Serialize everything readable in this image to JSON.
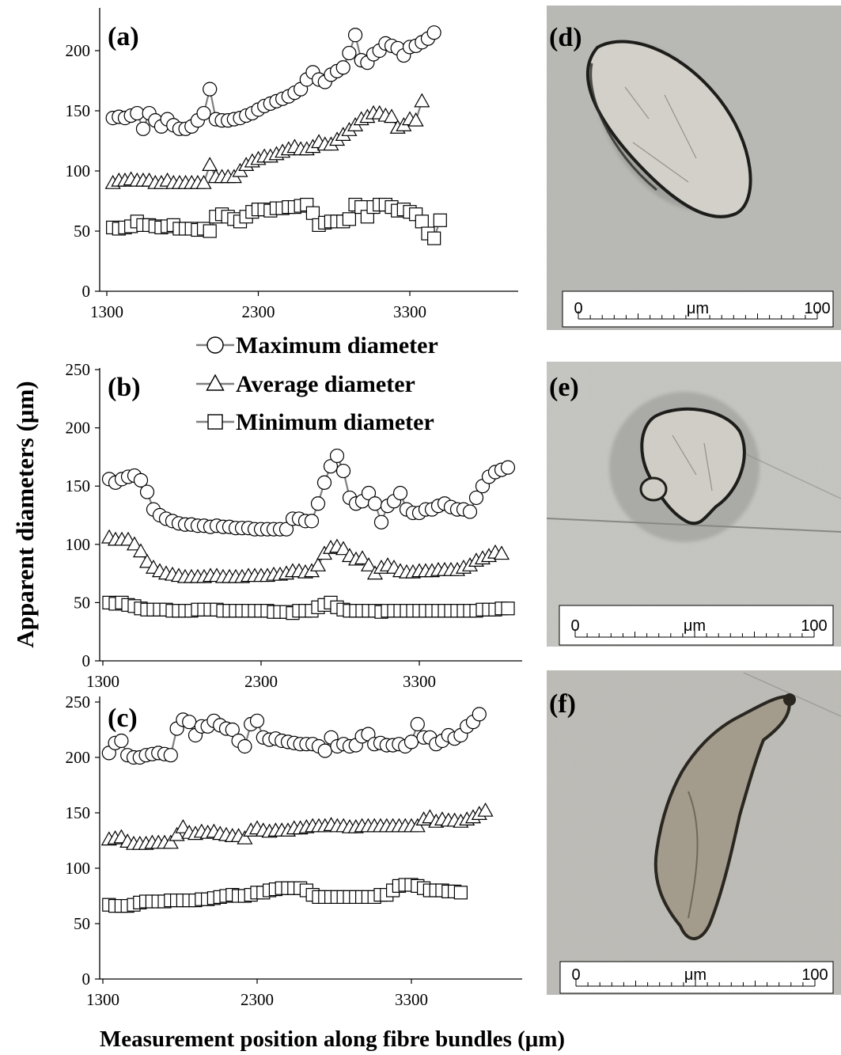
{
  "figure": {
    "ylabel": "Apparent diameters (μm)",
    "xlabel": "Measurement position along fibre bundles (μm)"
  },
  "legend": {
    "entries": [
      {
        "label": "Maximum diameter",
        "marker": "circle"
      },
      {
        "label": "Average diameter",
        "marker": "triangle"
      },
      {
        "label": "Minimum diameter",
        "marker": "square"
      }
    ]
  },
  "chart_data": [
    {
      "type": "line",
      "panel_label": "(a)",
      "xticks": [
        "1300",
        "2300",
        "3300"
      ],
      "yticks": [
        "0",
        "50",
        "100",
        "150",
        "200"
      ],
      "xlim": [
        1300,
        4000
      ],
      "ylim": [
        0,
        235
      ],
      "x_start": 1340,
      "x_step": 40,
      "series": [
        {
          "name": "Maximum diameter",
          "marker": "circle",
          "values": [
            144,
            145,
            144,
            146,
            148,
            135,
            148,
            142,
            137,
            143,
            138,
            135,
            135,
            137,
            142,
            148,
            168,
            143,
            142,
            142,
            143,
            144,
            146,
            148,
            151,
            154,
            156,
            158,
            160,
            162,
            165,
            168,
            176,
            182,
            176,
            174,
            180,
            183,
            186,
            198,
            213,
            192,
            190,
            197,
            200,
            206,
            204,
            202,
            196,
            203,
            204,
            207,
            210,
            215
          ]
        },
        {
          "name": "Average diameter",
          "marker": "triangle",
          "values": [
            90,
            92,
            92,
            93,
            92,
            92,
            92,
            90,
            90,
            92,
            90,
            90,
            90,
            90,
            90,
            90,
            105,
            95,
            95,
            95,
            95,
            100,
            105,
            108,
            110,
            112,
            112,
            114,
            116,
            118,
            120,
            118,
            118,
            120,
            124,
            122,
            122,
            126,
            130,
            134,
            138,
            143,
            145,
            148,
            148,
            146,
            145,
            136,
            138,
            143,
            142,
            158
          ]
        },
        {
          "name": "Minimum diameter",
          "marker": "square",
          "values": [
            53,
            52,
            53,
            54,
            58,
            55,
            55,
            54,
            53,
            54,
            55,
            52,
            52,
            52,
            51,
            52,
            50,
            62,
            64,
            62,
            60,
            58,
            62,
            66,
            68,
            68,
            67,
            69,
            69,
            70,
            70,
            71,
            72,
            65,
            55,
            57,
            58,
            58,
            58,
            60,
            72,
            70,
            62,
            70,
            72,
            72,
            70,
            67,
            68,
            66,
            64,
            58,
            48,
            44,
            59
          ]
        }
      ]
    },
    {
      "type": "line",
      "panel_label": "(b)",
      "xticks": [
        "1300",
        "2300",
        "3300"
      ],
      "yticks": [
        "0",
        "50",
        "100",
        "150",
        "200",
        "250"
      ],
      "xlim": [
        1300,
        4000
      ],
      "ylim": [
        0,
        250
      ],
      "x_start": 1340,
      "x_step": 40,
      "series": [
        {
          "name": "Maximum diameter",
          "marker": "circle",
          "values": [
            156,
            153,
            156,
            158,
            159,
            155,
            145,
            130,
            125,
            122,
            120,
            118,
            117,
            117,
            116,
            116,
            115,
            116,
            115,
            115,
            114,
            114,
            114,
            113,
            113,
            113,
            113,
            113,
            113,
            122,
            122,
            120,
            120,
            135,
            153,
            167,
            176,
            163,
            140,
            135,
            137,
            144,
            135,
            119,
            133,
            137,
            144,
            130,
            127,
            127,
            130,
            130,
            133,
            135,
            132,
            130,
            130,
            128,
            140,
            150,
            158,
            162,
            164,
            166
          ]
        },
        {
          "name": "Average diameter",
          "marker": "triangle",
          "values": [
            106,
            104,
            104,
            104,
            100,
            94,
            85,
            80,
            77,
            75,
            74,
            73,
            72,
            72,
            72,
            72,
            73,
            73,
            72,
            72,
            72,
            72,
            73,
            73,
            73,
            73,
            74,
            74,
            75,
            77,
            77,
            76,
            77,
            82,
            92,
            97,
            98,
            96,
            90,
            87,
            88,
            82,
            75,
            80,
            82,
            80,
            77,
            76,
            76,
            77,
            77,
            77,
            78,
            78,
            78,
            78,
            80,
            82,
            86,
            88,
            90,
            93,
            92
          ]
        },
        {
          "name": "Minimum diameter",
          "marker": "square",
          "values": [
            50,
            49,
            50,
            48,
            47,
            45,
            44,
            44,
            44,
            44,
            43,
            43,
            43,
            43,
            44,
            44,
            44,
            44,
            43,
            43,
            43,
            43,
            43,
            43,
            43,
            43,
            42,
            42,
            42,
            41,
            43,
            43,
            43,
            46,
            48,
            50,
            46,
            44,
            43,
            43,
            43,
            43,
            43,
            42,
            43,
            43,
            43,
            43,
            43,
            43,
            43,
            43,
            43,
            43,
            43,
            43,
            43,
            43,
            43,
            44,
            44,
            44,
            45,
            45
          ]
        }
      ]
    },
    {
      "type": "line",
      "panel_label": "(c)",
      "xticks": [
        "1300",
        "2300",
        "3300"
      ],
      "yticks": [
        "0",
        "50",
        "100",
        "150",
        "200",
        "250"
      ],
      "xlim": [
        1300,
        4000
      ],
      "ylim": [
        0,
        250
      ],
      "x_start": 1340,
      "x_step": 40,
      "series": [
        {
          "name": "Maximum diameter",
          "marker": "circle",
          "values": [
            204,
            213,
            215,
            202,
            200,
            200,
            202,
            203,
            204,
            203,
            202,
            226,
            234,
            232,
            220,
            228,
            228,
            233,
            229,
            226,
            225,
            215,
            210,
            230,
            233,
            218,
            216,
            217,
            215,
            214,
            213,
            212,
            212,
            212,
            210,
            206,
            218,
            210,
            212,
            210,
            211,
            219,
            221,
            212,
            213,
            211,
            211,
            212,
            210,
            214,
            230,
            218,
            218,
            212,
            215,
            220,
            217,
            220,
            228,
            232,
            239
          ]
        },
        {
          "name": "Average diameter",
          "marker": "triangle",
          "values": [
            126,
            127,
            128,
            124,
            122,
            122,
            122,
            123,
            123,
            123,
            123,
            130,
            137,
            132,
            131,
            133,
            132,
            133,
            131,
            130,
            129,
            129,
            127,
            134,
            136,
            134,
            133,
            134,
            134,
            134,
            136,
            136,
            137,
            138,
            138,
            138,
            139,
            138,
            138,
            137,
            137,
            138,
            138,
            138,
            138,
            138,
            138,
            138,
            138,
            138,
            138,
            144,
            146,
            142,
            144,
            143,
            143,
            142,
            144,
            146,
            149,
            152
          ]
        },
        {
          "name": "Minimum diameter",
          "marker": "square",
          "values": [
            67,
            66,
            66,
            66,
            67,
            69,
            70,
            70,
            70,
            70,
            71,
            71,
            71,
            71,
            71,
            72,
            72,
            73,
            74,
            75,
            76,
            75,
            75,
            76,
            78,
            78,
            80,
            81,
            82,
            82,
            82,
            82,
            80,
            76,
            74,
            74,
            74,
            74,
            74,
            74,
            74,
            74,
            74,
            74,
            76,
            76,
            80,
            84,
            85,
            85,
            84,
            82,
            80,
            80,
            80,
            79,
            79,
            78
          ]
        }
      ]
    }
  ],
  "images": [
    {
      "label": "(d)",
      "scale": {
        "left": "0",
        "unit": "μm",
        "right": "100"
      }
    },
    {
      "label": "(e)",
      "scale": {
        "left": "0",
        "unit": "μm",
        "right": "100"
      }
    },
    {
      "label": "(f)",
      "scale": {
        "left": "0",
        "unit": "μm",
        "right": "100"
      }
    }
  ]
}
